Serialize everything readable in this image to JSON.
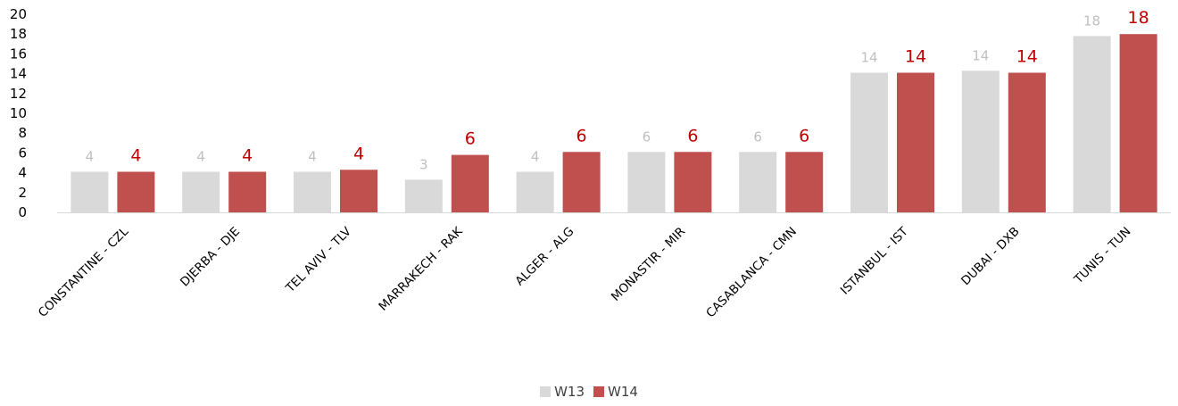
{
  "chart_data": {
    "type": "bar",
    "categories": [
      "CONSTANTINE - CZL",
      "DJERBA - DJE",
      "TEL AVIV - TLV",
      "MARRAKECH - RAK",
      "ALGER - ALG",
      "MONASTIR - MIR",
      "CASABLANCA - CMN",
      "ISTANBUL - IST",
      "DUBAI - DXB",
      "TUNIS - TUN"
    ],
    "series": [
      {
        "name": "W13",
        "values": [
          4,
          4,
          4,
          3,
          4,
          6,
          6,
          14,
          14,
          18
        ],
        "bar_heights": [
          4.1,
          4.1,
          4.1,
          3.3,
          4.1,
          6.1,
          6.1,
          14.1,
          14.3,
          17.8
        ],
        "color": "#d9d9d9",
        "label_color": "#bfbfbf"
      },
      {
        "name": "W14",
        "values": [
          4,
          4,
          4,
          6,
          6,
          6,
          6,
          14,
          14,
          18
        ],
        "bar_heights": [
          4.1,
          4.1,
          4.3,
          5.8,
          6.1,
          6.1,
          6.1,
          14.1,
          14.1,
          18.0
        ],
        "color": "#c0504d",
        "label_color": "#c00000"
      }
    ],
    "yticks": [
      "0",
      "2",
      "4",
      "6",
      "8",
      "10",
      "12",
      "14",
      "16",
      "18",
      "20"
    ],
    "ylim": [
      0,
      20
    ],
    "grid": false,
    "legend_position": "bottom"
  }
}
